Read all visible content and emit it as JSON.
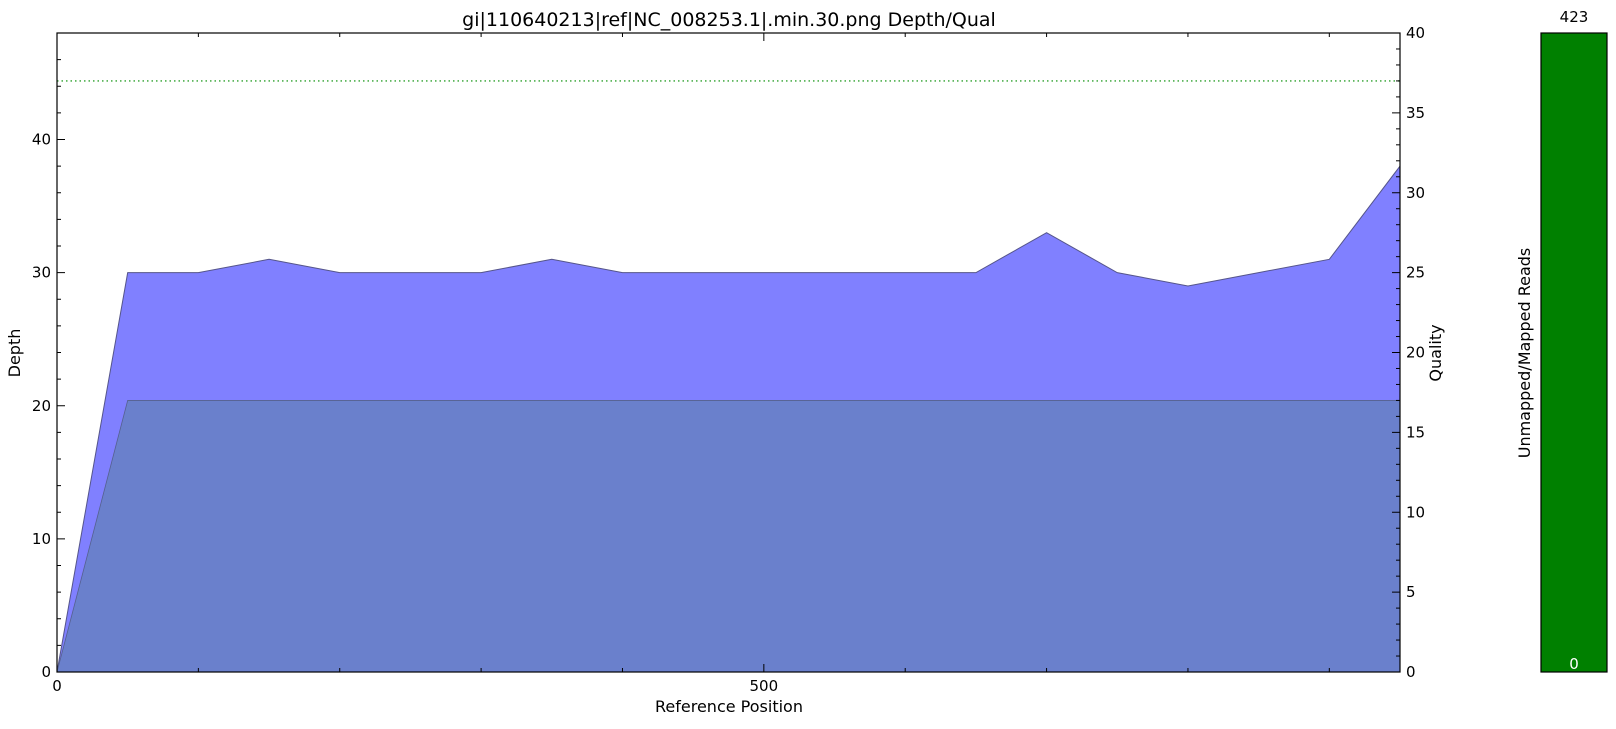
{
  "chart_data": [
    {
      "type": "area",
      "title": "gi|110640213|ref|NC_008253.1|.min.30.png Depth/Qual",
      "xlabel": "Reference Position",
      "ylabel": "Depth",
      "y2label": "Quality",
      "xlim": [
        0,
        950
      ],
      "ylim": [
        0,
        48
      ],
      "y2lim": [
        0,
        40
      ],
      "x_ticks": [
        0,
        500
      ],
      "y_ticks": [
        0,
        10,
        20,
        30,
        40
      ],
      "y2_ticks": [
        0,
        5,
        10,
        15,
        20,
        25,
        30,
        35,
        40
      ],
      "grid": false,
      "depth_series": {
        "color": "#8080ff",
        "x": [
          0,
          50,
          100,
          150,
          200,
          250,
          300,
          350,
          400,
          450,
          500,
          550,
          600,
          650,
          700,
          750,
          800,
          850,
          900,
          950
        ],
        "y": [
          0,
          30,
          30,
          31,
          30,
          30,
          30,
          31,
          30,
          30,
          30,
          30,
          30,
          30,
          33,
          30,
          29,
          30,
          31,
          38
        ]
      },
      "quality_series": {
        "color": "#6a80cc",
        "x": [
          0,
          50,
          950
        ],
        "y": [
          0,
          17,
          17
        ]
      },
      "reference_line": {
        "axis": "quality",
        "value": 37,
        "color": "#2ca02c",
        "style": "dotted"
      }
    },
    {
      "type": "bar",
      "ylabel": "Unmapped/Mapped Reads",
      "top_label": "423",
      "bottom_label": "0",
      "mapped": 423,
      "unmapped": 0,
      "color": "#008000"
    }
  ]
}
